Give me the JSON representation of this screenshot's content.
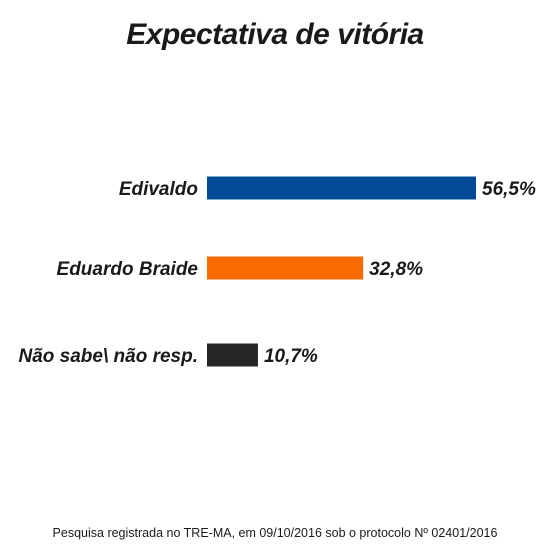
{
  "chart_data": {
    "type": "bar",
    "orientation": "horizontal",
    "title": "Expectativa de vitória",
    "categories": [
      "Edivaldo",
      "Eduardo Braide",
      "Não sabe\\ não resp."
    ],
    "values": [
      56.5,
      32.8,
      10.7
    ],
    "value_labels": [
      "56,5%",
      "32,8%",
      "10,7%"
    ],
    "colors": [
      "#004a98",
      "#f76b00",
      "#262626"
    ],
    "xlim": [
      0,
      56.5
    ],
    "grid": false,
    "legend": "none"
  },
  "footnote": "Pesquisa registrada no TRE-MA, em 09/10/2016 sob o protocolo  Nº 02401/2016"
}
